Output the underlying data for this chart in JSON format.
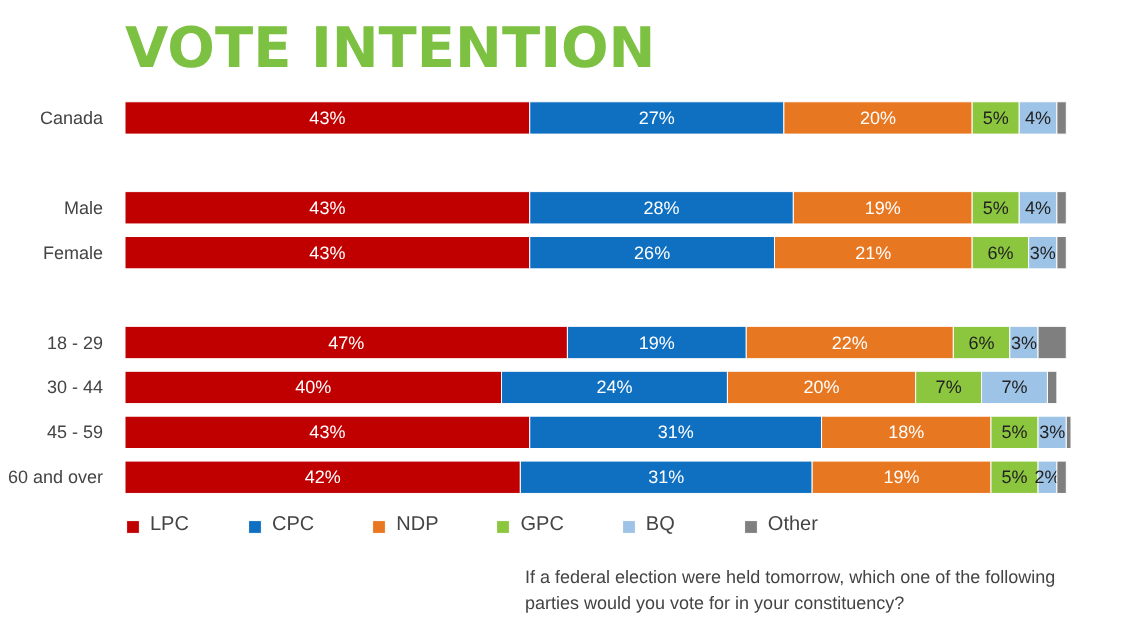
{
  "chart_data": {
    "type": "bar",
    "orientation": "horizontal",
    "stacked": true,
    "title": "VOTE INTENTION",
    "categories": [
      "Canada",
      null,
      "Male",
      "Female",
      null,
      "18 - 29",
      "30 - 44",
      "45 - 59",
      "60 and over"
    ],
    "series": [
      {
        "name": "LPC",
        "color": "#c00000",
        "values": [
          43,
          null,
          43,
          43,
          null,
          47,
          40,
          43,
          42
        ],
        "value_labels": [
          "43%",
          null,
          "43%",
          "43%",
          null,
          "47%",
          "40%",
          "43%",
          "42%"
        ]
      },
      {
        "name": "CPC",
        "color": "#0f6fc0",
        "values": [
          27,
          null,
          28,
          26,
          null,
          19,
          24,
          31,
          31
        ],
        "value_labels": [
          "27%",
          null,
          "28%",
          "26%",
          null,
          "19%",
          "24%",
          "31%",
          "31%"
        ]
      },
      {
        "name": "NDP",
        "color": "#e87722",
        "values": [
          20,
          null,
          19,
          21,
          null,
          22,
          20,
          18,
          19
        ],
        "value_labels": [
          "20%",
          null,
          "19%",
          "21%",
          null,
          "22%",
          "20%",
          "18%",
          "19%"
        ]
      },
      {
        "name": "GPC",
        "color": "#8cc63f",
        "values": [
          5,
          null,
          5,
          6,
          null,
          6,
          7,
          5,
          5
        ],
        "value_labels": [
          "5%",
          null,
          "5%",
          "6%",
          null,
          "6%",
          "7%",
          "5%",
          "5%"
        ]
      },
      {
        "name": "BQ",
        "color": "#9dc3e6",
        "values": [
          4,
          null,
          4,
          3,
          null,
          3,
          7,
          3,
          2
        ],
        "value_labels": [
          "4%",
          null,
          "4%",
          "3%",
          null,
          "3%",
          "7%",
          "3%",
          "2%"
        ]
      },
      {
        "name": "Other",
        "color": "#7f7f7f",
        "values": [
          1,
          null,
          1,
          1,
          null,
          3,
          1,
          0.5,
          1
        ]
      }
    ],
    "legend": "bottom",
    "annotations": [
      "If a federal election were held tomorrow, which one of the following parties would you vote for in your constituency?"
    ]
  }
}
